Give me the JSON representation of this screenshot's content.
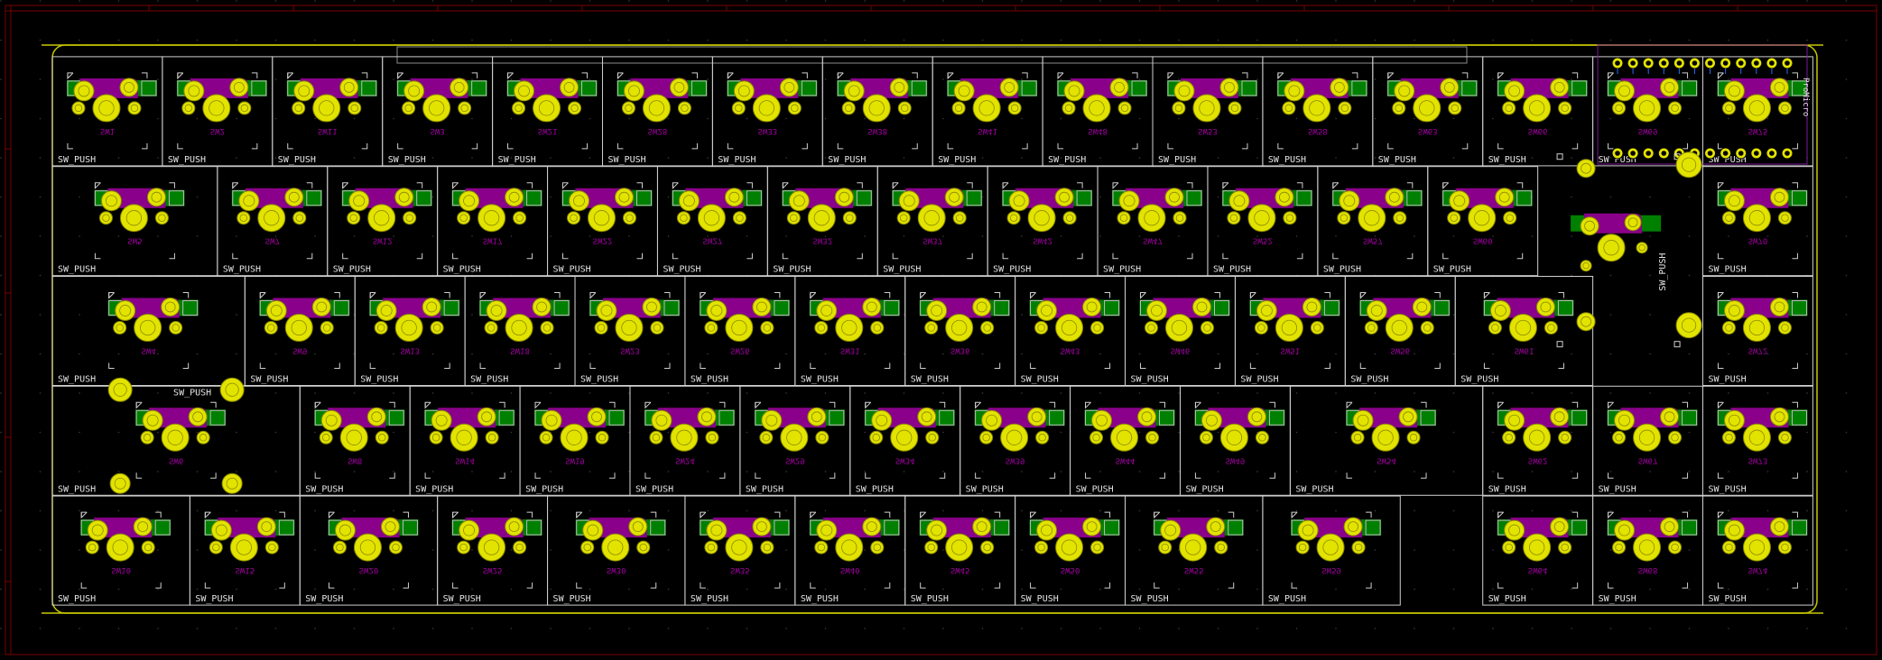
{
  "app": "PCB layout editor",
  "colors": {
    "background": "#000000",
    "edge_cuts": "#c8c800",
    "silkscreen": "#e6e6e6",
    "pad": "#e3e300",
    "pad_outline": "#8a8a00",
    "copper_front": "#008000",
    "copper_back": "#8a008a",
    "fab_text": "#a000a0",
    "frame": "#7a0000"
  },
  "footprint_value": "SW_PUSH",
  "mcu": {
    "label": "ProMicro",
    "pins_per_row": 12
  },
  "rows": [
    {
      "refs": [
        "SW1",
        "SW2",
        "SW11",
        "SW3",
        "SW21",
        "SW28",
        "SW33",
        "SW38",
        "SW41",
        "SW48",
        "SW53",
        "SW58",
        "SW63",
        "SW66",
        "SW69",
        "SW75"
      ]
    },
    {
      "refs": [
        "SW5",
        "SW7",
        "SW12",
        "SW17",
        "SW22",
        "SW27",
        "SW32",
        "SW37",
        "SW42",
        "SW47",
        "SW52",
        "SW57",
        "SW60",
        "SW71",
        "SW70"
      ]
    },
    {
      "refs": [
        "SW4",
        "SW9",
        "SW13",
        "SW18",
        "SW23",
        "SW26",
        "SW31",
        "SW36",
        "SW43",
        "SW46",
        "SW51",
        "SW56",
        "SW61",
        "SW72"
      ]
    },
    {
      "refs": [
        "SW6",
        "SW8",
        "SW14",
        "SW19",
        "SW24",
        "SW29",
        "SW34",
        "SW39",
        "SW44",
        "SW49",
        "SW54",
        "SW62",
        "SW67",
        "SW73"
      ]
    },
    {
      "refs": [
        "SW10",
        "SW15",
        "SW20",
        "SW25",
        "SW30",
        "SW35",
        "SW40",
        "SW45",
        "SW50",
        "SW55",
        "SW59",
        "SW64",
        "SW68",
        "SW74"
      ]
    }
  ]
}
